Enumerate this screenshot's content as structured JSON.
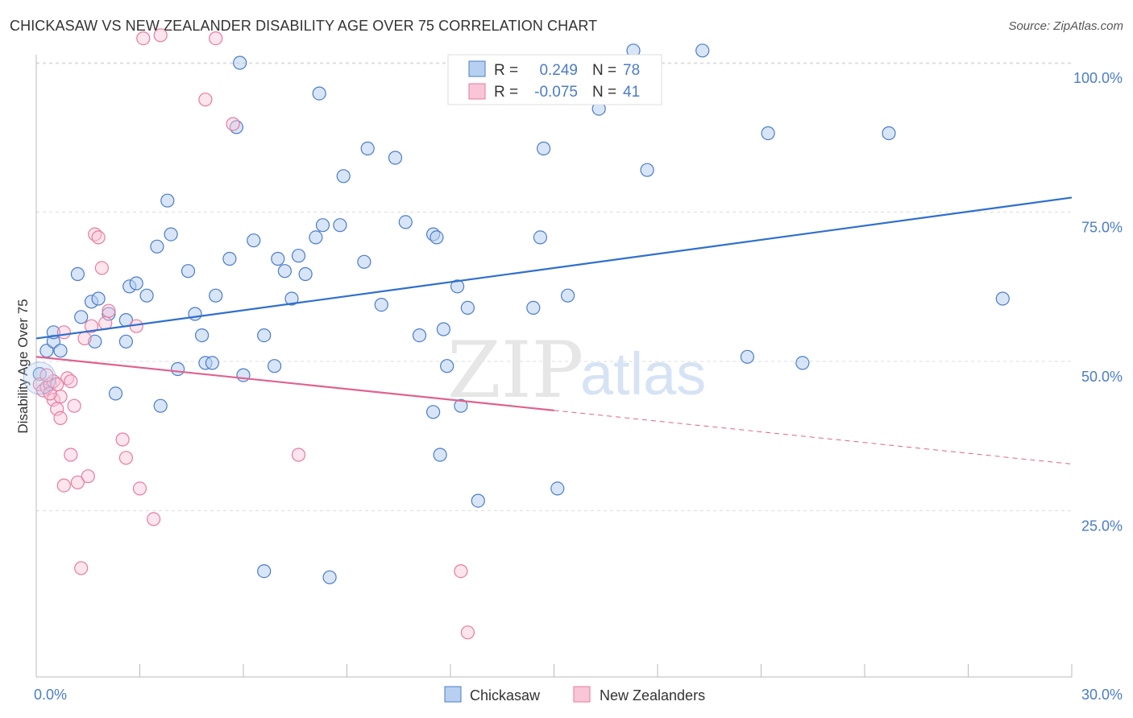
{
  "title": "CHICKASAW VS NEW ZEALANDER DISABILITY AGE OVER 75 CORRELATION CHART",
  "source": "Source: ZipAtlas.com",
  "watermark": {
    "zip": "ZIP",
    "atlas": "atlas"
  },
  "colors": {
    "blue": "#4a7cc9",
    "blue_fill": "#b8d0f0",
    "blue_line": "#2f6fcf",
    "pink": "#e97aa0",
    "pink_fill": "#f8c6d6",
    "pink_line": "#e0628e",
    "grid": "#dddddd",
    "axis_label": "#4a7cc9"
  },
  "legend_box": {
    "rows": [
      {
        "r_label": "R =",
        "r_value": "0.249",
        "n_label": "N =",
        "n_value": "78",
        "series": "Chickasaw"
      },
      {
        "r_label": "R =",
        "r_value": "-0.075",
        "n_label": "N =",
        "n_value": "41",
        "series": "New Zealanders"
      }
    ]
  },
  "chart_data": {
    "type": "scatter",
    "title": "CHICKASAW VS NEW ZEALANDER DISABILITY AGE OVER 75 CORRELATION CHART",
    "xlabel": "",
    "ylabel": "Disability Age Over 75",
    "xlim": [
      0,
      30
    ],
    "ylim": [
      0,
      100
    ],
    "x_tick_labels": [
      "0.0%",
      "30.0%"
    ],
    "y_ticks": [
      25,
      50,
      75,
      100
    ],
    "y_tick_labels": [
      "25.0%",
      "50.0%",
      "75.0%",
      "100.0%"
    ],
    "grid": true,
    "legend_position": "bottom",
    "series": [
      {
        "name": "Chickasaw",
        "color": "#4a7cc9",
        "r": 0.249,
        "n": 78,
        "trend": {
          "x": [
            0,
            30
          ],
          "y": [
            55.0,
            78.0
          ],
          "dashed_from": null
        },
        "points": [
          [
            0.1,
            49.2
          ],
          [
            0.3,
            53.0
          ],
          [
            0.5,
            54.5
          ],
          [
            0.5,
            56.0
          ],
          [
            0.7,
            53.0
          ],
          [
            1.2,
            65.5
          ],
          [
            1.3,
            58.5
          ],
          [
            1.6,
            61.0
          ],
          [
            1.7,
            54.5
          ],
          [
            1.8,
            61.5
          ],
          [
            2.1,
            59.0
          ],
          [
            2.3,
            46.0
          ],
          [
            2.6,
            58.0
          ],
          [
            2.7,
            63.5
          ],
          [
            2.9,
            64.0
          ],
          [
            3.2,
            62.0
          ],
          [
            3.5,
            70.0
          ],
          [
            3.6,
            44.0
          ],
          [
            3.8,
            77.5
          ],
          [
            3.9,
            72.0
          ],
          [
            4.1,
            50.0
          ],
          [
            4.4,
            66.0
          ],
          [
            4.6,
            59.0
          ],
          [
            4.8,
            55.5
          ],
          [
            4.9,
            51.0
          ],
          [
            5.1,
            51.0
          ],
          [
            5.2,
            62.0
          ],
          [
            5.6,
            68.0
          ],
          [
            5.8,
            89.5
          ],
          [
            5.9,
            100.0
          ],
          [
            6.0,
            49.0
          ],
          [
            6.3,
            71.0
          ],
          [
            6.6,
            17.0
          ],
          [
            6.6,
            55.5
          ],
          [
            6.9,
            50.5
          ],
          [
            7.0,
            68.0
          ],
          [
            7.2,
            66.0
          ],
          [
            7.4,
            61.5
          ],
          [
            7.6,
            68.5
          ],
          [
            7.8,
            65.5
          ],
          [
            8.1,
            71.5
          ],
          [
            8.2,
            95.0
          ],
          [
            8.3,
            73.5
          ],
          [
            8.5,
            16.0
          ],
          [
            8.8,
            73.5
          ],
          [
            8.9,
            81.5
          ],
          [
            9.5,
            67.5
          ],
          [
            9.6,
            86.0
          ],
          [
            10.0,
            60.5
          ],
          [
            10.7,
            74.0
          ],
          [
            11.1,
            55.5
          ],
          [
            11.5,
            72.0
          ],
          [
            11.5,
            43.0
          ],
          [
            11.6,
            71.5
          ],
          [
            11.7,
            36.0
          ],
          [
            11.8,
            56.5
          ],
          [
            11.9,
            50.5
          ],
          [
            12.2,
            63.5
          ],
          [
            12.3,
            44.0
          ],
          [
            12.5,
            60.0
          ],
          [
            12.8,
            28.5
          ],
          [
            14.4,
            60.0
          ],
          [
            14.6,
            71.5
          ],
          [
            14.7,
            86.0
          ],
          [
            15.1,
            30.5
          ],
          [
            15.4,
            62.0
          ],
          [
            16.3,
            92.5
          ],
          [
            17.7,
            82.5
          ],
          [
            20.6,
            52.0
          ],
          [
            21.2,
            88.5
          ],
          [
            22.2,
            51.0
          ],
          [
            24.7,
            88.5
          ],
          [
            28.0,
            61.5
          ],
          [
            17.3,
            102.0
          ],
          [
            19.3,
            102.0
          ],
          [
            15.8,
            100.0
          ],
          [
            10.4,
            84.5
          ],
          [
            2.6,
            54.5
          ]
        ]
      },
      {
        "name": "New Zealanders",
        "color": "#e97aa0",
        "r": -0.075,
        "n": 41,
        "trend": {
          "x": [
            0,
            30
          ],
          "y": [
            52.0,
            34.5
          ],
          "dashed_from": 15.0
        },
        "points": [
          [
            0.1,
            47.5
          ],
          [
            0.2,
            46.5
          ],
          [
            0.3,
            47.0
          ],
          [
            0.4,
            47.5
          ],
          [
            0.5,
            45.0
          ],
          [
            0.5,
            48.0
          ],
          [
            0.6,
            43.5
          ],
          [
            0.7,
            42.0
          ],
          [
            0.7,
            45.5
          ],
          [
            0.8,
            56.0
          ],
          [
            0.9,
            48.5
          ],
          [
            1.0,
            36.0
          ],
          [
            1.1,
            44.0
          ],
          [
            1.2,
            31.5
          ],
          [
            1.3,
            17.5
          ],
          [
            1.4,
            55.0
          ],
          [
            1.5,
            32.5
          ],
          [
            1.7,
            72.0
          ],
          [
            1.8,
            71.5
          ],
          [
            1.9,
            66.5
          ],
          [
            2.0,
            57.5
          ],
          [
            2.1,
            59.5
          ],
          [
            2.5,
            38.5
          ],
          [
            2.6,
            35.5
          ],
          [
            2.9,
            57.0
          ],
          [
            3.0,
            30.5
          ],
          [
            3.1,
            104.0
          ],
          [
            3.4,
            25.5
          ],
          [
            3.6,
            104.5
          ],
          [
            4.9,
            94.0
          ],
          [
            5.2,
            104.0
          ],
          [
            5.7,
            90.0
          ],
          [
            7.6,
            36.0
          ],
          [
            12.3,
            17.0
          ],
          [
            12.5,
            7.0
          ],
          [
            0.8,
            31.0
          ],
          [
            0.4,
            46.0
          ],
          [
            0.3,
            49.0
          ],
          [
            1.0,
            48.0
          ],
          [
            1.6,
            57.0
          ],
          [
            0.6,
            47.5
          ]
        ]
      }
    ]
  }
}
